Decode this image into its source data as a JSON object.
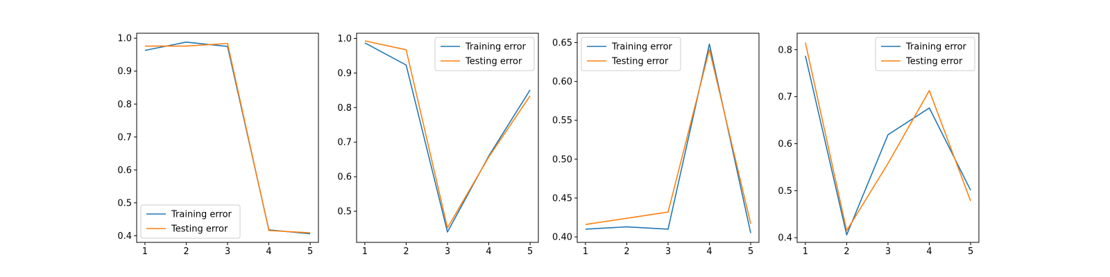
{
  "colors": {
    "series_0": "#1f77b4",
    "series_1": "#ff7f0e"
  },
  "chart_data": [
    {
      "type": "line",
      "x": [
        1,
        2,
        3,
        4,
        5
      ],
      "xticks": [
        "1",
        "2",
        "3",
        "4",
        "5"
      ],
      "xlim": [
        0.8,
        5.2
      ],
      "ylim": [
        0.38,
        1.015
      ],
      "yticks": [
        "0.4",
        "0.5",
        "0.6",
        "0.7",
        "0.8",
        "0.9",
        "1.0"
      ],
      "legend_position": "lower-left",
      "series": [
        {
          "name": "Training error",
          "values": [
            0.963,
            0.988,
            0.975,
            0.418,
            0.406
          ]
        },
        {
          "name": "Testing error",
          "values": [
            0.976,
            0.976,
            0.984,
            0.416,
            0.409
          ]
        }
      ]
    },
    {
      "type": "line",
      "x": [
        1,
        2,
        3,
        4,
        5
      ],
      "xticks": [
        "1",
        "2",
        "3",
        "4",
        "5"
      ],
      "xlim": [
        0.8,
        5.2
      ],
      "ylim": [
        0.41,
        1.015
      ],
      "yticks": [
        "0.5",
        "0.6",
        "0.7",
        "0.8",
        "0.9",
        "1.0"
      ],
      "legend_position": "upper-right",
      "series": [
        {
          "name": "Training error",
          "values": [
            0.987,
            0.923,
            0.44,
            0.66,
            0.851
          ]
        },
        {
          "name": "Testing error",
          "values": [
            0.993,
            0.967,
            0.452,
            0.657,
            0.834
          ]
        }
      ]
    },
    {
      "type": "line",
      "x": [
        1,
        2,
        3,
        4,
        5
      ],
      "xticks": [
        "1",
        "2",
        "3",
        "4",
        "5"
      ],
      "xlim": [
        0.8,
        5.2
      ],
      "ylim": [
        0.393,
        0.662
      ],
      "yticks": [
        "0.40",
        "0.45",
        "0.50",
        "0.55",
        "0.60",
        "0.65"
      ],
      "legend_position": "upper-left",
      "series": [
        {
          "name": "Training error",
          "values": [
            0.41,
            0.413,
            0.41,
            0.648,
            0.405
          ]
        },
        {
          "name": "Testing error",
          "values": [
            0.416,
            0.424,
            0.432,
            0.641,
            0.417
          ]
        }
      ]
    },
    {
      "type": "line",
      "x": [
        1,
        2,
        3,
        4,
        5
      ],
      "xticks": [
        "1",
        "2",
        "3",
        "4",
        "5"
      ],
      "xlim": [
        0.8,
        5.2
      ],
      "ylim": [
        0.39,
        0.835
      ],
      "yticks": [
        "0.4",
        "0.5",
        "0.6",
        "0.7",
        "0.8"
      ],
      "legend_position": "upper-right",
      "series": [
        {
          "name": "Training error",
          "values": [
            0.787,
            0.406,
            0.619,
            0.676,
            0.501
          ]
        },
        {
          "name": "Testing error",
          "values": [
            0.815,
            0.415,
            0.558,
            0.713,
            0.478
          ]
        }
      ]
    }
  ]
}
